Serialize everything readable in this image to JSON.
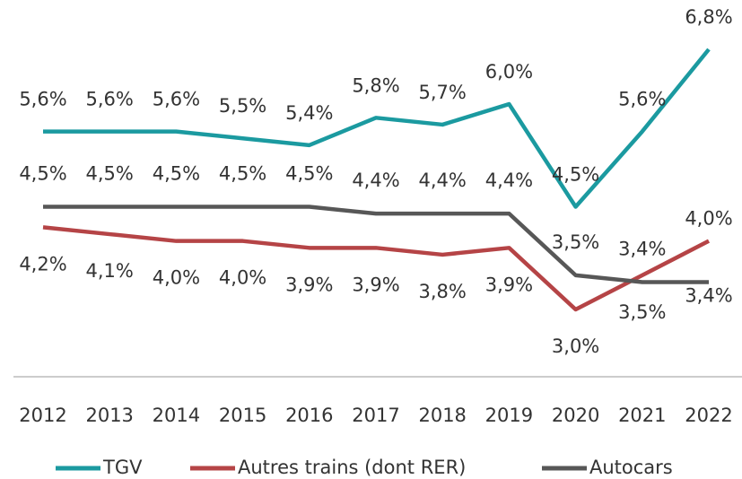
{
  "chart_data": {
    "type": "line",
    "categories": [
      "2012",
      "2013",
      "2014",
      "2015",
      "2016",
      "2017",
      "2018",
      "2019",
      "2020",
      "2021",
      "2022"
    ],
    "series": [
      {
        "name": "TGV",
        "color": "#1b9aa0",
        "values": [
          5.6,
          5.6,
          5.6,
          5.5,
          5.4,
          5.8,
          5.7,
          6.0,
          4.5,
          5.6,
          6.8
        ],
        "value_labels": [
          "5,6%",
          "5,6%",
          "5,6%",
          "5,5%",
          "5,4%",
          "5,8%",
          "5,7%",
          "6,0%",
          "4,5%",
          "5,6%",
          "6,8%"
        ]
      },
      {
        "name": "Autres trains (dont RER)",
        "color": "#b54446",
        "values": [
          4.2,
          4.1,
          4.0,
          4.0,
          3.9,
          3.9,
          3.8,
          3.9,
          3.0,
          3.5,
          4.0
        ],
        "value_labels": [
          "4,2%",
          "4,1%",
          "4,0%",
          "4,0%",
          "3,9%",
          "3,9%",
          "3,8%",
          "3,9%",
          "3,0%",
          "3,5%",
          "4,0%"
        ]
      },
      {
        "name": "Autocars",
        "color": "#575757",
        "values": [
          4.5,
          4.5,
          4.5,
          4.5,
          4.5,
          4.4,
          4.4,
          4.4,
          3.5,
          3.4,
          3.4
        ],
        "value_labels": [
          "4,5%",
          "4,5%",
          "4,5%",
          "4,5%",
          "4,5%",
          "4,4%",
          "4,4%",
          "4,4%",
          "3,5%",
          "3,4%",
          "3,4%"
        ]
      }
    ]
  }
}
